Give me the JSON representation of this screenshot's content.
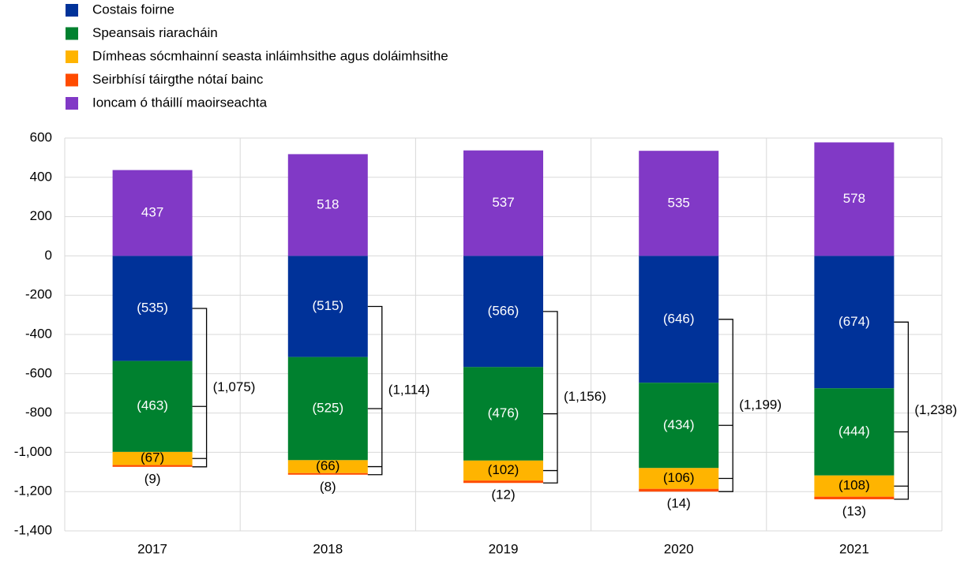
{
  "chart_data": {
    "type": "bar",
    "stacked": true,
    "categories": [
      "2017",
      "2018",
      "2019",
      "2020",
      "2021"
    ],
    "series": [
      {
        "name": "Costais foirne",
        "color": "#003299",
        "values": [
          -535,
          -515,
          -566,
          -646,
          -674
        ],
        "value_labels": [
          "(535)",
          "(515)",
          "(566)",
          "(646)",
          "(674)"
        ]
      },
      {
        "name": "Speansais riaracháin",
        "color": "#00812f",
        "values": [
          -463,
          -525,
          -476,
          -434,
          -444
        ],
        "value_labels": [
          "(463)",
          "(525)",
          "(476)",
          "(434)",
          "(444)"
        ]
      },
      {
        "name": "Dímheas sócmhainní seasta inláimhsithe agus doláimhsithe",
        "color": "#ffb400",
        "values": [
          -67,
          -66,
          -102,
          -106,
          -108
        ],
        "value_labels": [
          "(67)",
          "(66)",
          "(102)",
          "(106)",
          "(108)"
        ]
      },
      {
        "name": "Seirbhísí táirgthe nótaí bainc",
        "color": "#ff4b00",
        "values": [
          -9,
          -8,
          -12,
          -14,
          -13
        ],
        "value_labels": [
          "(9)",
          "(8)",
          "(12)",
          "(14)",
          "(13)"
        ]
      },
      {
        "name": "Ioncam ó tháillí maoirseachta",
        "color": "#8139c6",
        "values": [
          437,
          518,
          537,
          535,
          578
        ]
      }
    ],
    "brackets": {
      "values": [
        -1075,
        -1114,
        -1156,
        -1199,
        -1238
      ],
      "value_labels": [
        "(1,075)",
        "(1,114)",
        "(1,156)",
        "(1,199)",
        "(1,238)"
      ]
    },
    "ylim": [
      -1400,
      600
    ],
    "yticks": [
      600,
      400,
      200,
      0,
      -200,
      -400,
      -600,
      -800,
      {
        "value": -1000,
        "label": "-1,000"
      },
      {
        "value": -1200,
        "label": "-1,200"
      },
      {
        "value": -1400,
        "label": "-1,400"
      }
    ],
    "grid": true,
    "legend": "top-left"
  }
}
